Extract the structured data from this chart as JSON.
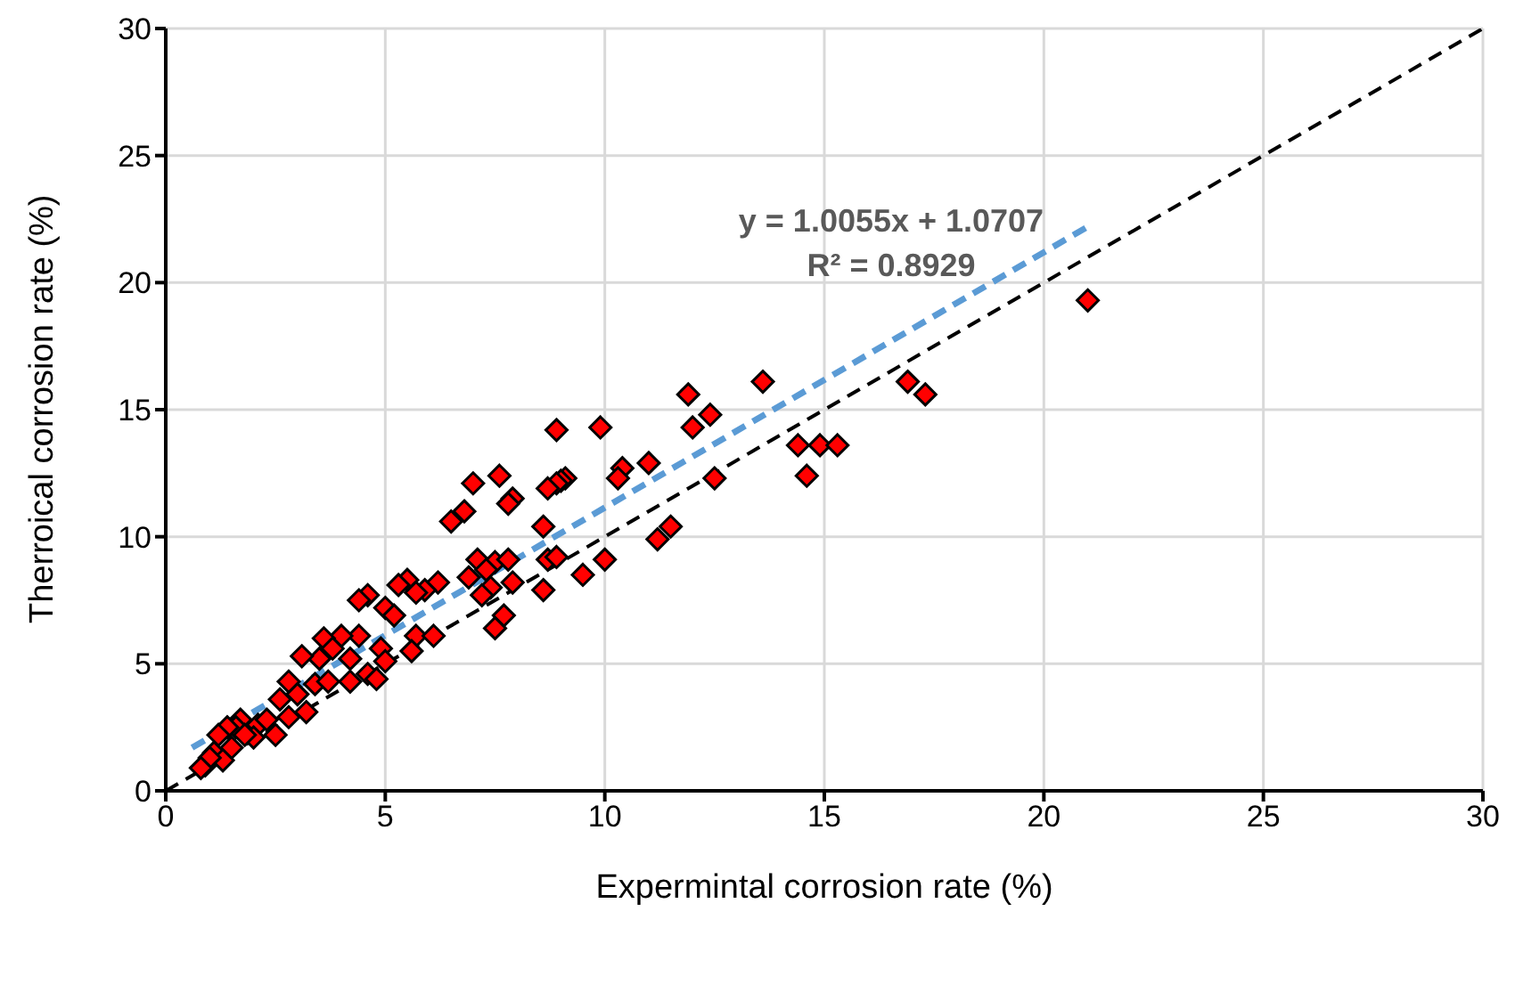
{
  "chart_data": {
    "type": "scatter",
    "xlabel": "Expermintal corrosion rate (%)",
    "ylabel": "Therroical corrosion rate (%)",
    "xlim": [
      0,
      30
    ],
    "ylim": [
      0,
      30
    ],
    "xticks": [
      0,
      5,
      10,
      15,
      20,
      25,
      30
    ],
    "yticks": [
      0,
      5,
      10,
      15,
      20,
      25,
      30
    ],
    "grid": true,
    "legend": false,
    "annotations": [
      "y = 1.0055x + 1.0707",
      "R² = 0.8929"
    ],
    "series": [
      {
        "color": "#ff0000",
        "marker": "diamond",
        "x": [
          21.0,
          16.9,
          17.3,
          14.4,
          14.9,
          15.3,
          14.6,
          13.6,
          11.9,
          12.4,
          12.0,
          11.0,
          10.4,
          10.3,
          12.5,
          11.5,
          11.2,
          9.9,
          8.9,
          9.1,
          9.0,
          8.9,
          8.7,
          8.6,
          8.7,
          8.9,
          8.6,
          10.0,
          9.5,
          7.6,
          7.0,
          7.9,
          7.8,
          6.8,
          6.5,
          7.1,
          7.5,
          7.8,
          7.3,
          6.9,
          7.4,
          7.2,
          7.9,
          7.7,
          7.5,
          6.2,
          5.9,
          5.5,
          5.3,
          5.7,
          5.0,
          4.6,
          4.4,
          5.2,
          5.7,
          6.1,
          5.6,
          4.9,
          5.0,
          4.6,
          4.8,
          4.2,
          4.4,
          4.0,
          3.6,
          3.8,
          4.2,
          3.5,
          3.1,
          3.4,
          3.7,
          3.2,
          3.0,
          2.8,
          2.6,
          2.5,
          2.8,
          2.1,
          2.0,
          1.7,
          1.6,
          1.4,
          1.2,
          1.5,
          1.1,
          1.3,
          0.9,
          1.0,
          0.8,
          1.8,
          2.3
        ],
        "values": [
          19.3,
          16.1,
          15.6,
          13.6,
          13.6,
          13.6,
          12.4,
          16.1,
          15.6,
          14.8,
          14.3,
          12.9,
          12.7,
          12.3,
          12.3,
          10.4,
          9.9,
          14.3,
          14.2,
          12.3,
          12.2,
          12.1,
          11.9,
          10.4,
          9.1,
          9.2,
          7.9,
          9.1,
          8.5,
          12.4,
          12.1,
          11.5,
          11.3,
          11.0,
          10.6,
          9.1,
          9.0,
          9.1,
          8.7,
          8.4,
          8.0,
          7.7,
          8.2,
          6.9,
          6.4,
          8.2,
          7.9,
          8.3,
          8.1,
          7.8,
          7.2,
          7.7,
          7.5,
          6.9,
          6.1,
          6.1,
          5.5,
          5.6,
          5.1,
          4.6,
          4.4,
          4.3,
          6.1,
          6.1,
          6.0,
          5.6,
          5.2,
          5.2,
          5.3,
          4.2,
          4.3,
          3.1,
          3.8,
          4.3,
          3.6,
          2.2,
          2.9,
          2.6,
          2.1,
          2.8,
          2.5,
          2.5,
          2.2,
          1.7,
          1.5,
          1.2,
          1.0,
          1.3,
          0.9,
          2.2,
          2.8
        ]
      },
      {
        "type": "line",
        "color": "#5b9bd5",
        "line_style": "dashed",
        "marker": "none",
        "x": [
          0.6,
          21.1
        ],
        "values": [
          1.7,
          22.3
        ]
      },
      {
        "type": "line",
        "color": "#000000",
        "line_style": "dashed",
        "marker": "none",
        "x": [
          0,
          30
        ],
        "values": [
          0,
          30
        ]
      }
    ]
  }
}
